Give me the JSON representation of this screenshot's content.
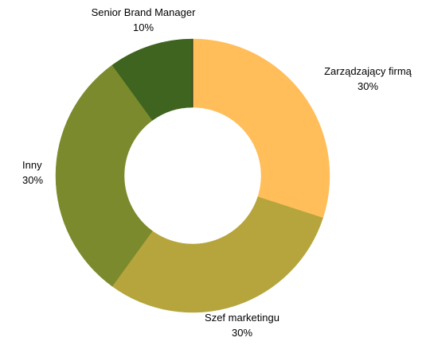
{
  "chart_data": {
    "type": "pie",
    "donut": true,
    "title": "",
    "legend": "none",
    "slices": [
      {
        "label": "Zarządzający firmą",
        "value": 30,
        "value_label": "30%",
        "color": "#ffbe5a"
      },
      {
        "label": "Szef marketingu",
        "value": 30,
        "value_label": "30%",
        "color": "#b6a53c"
      },
      {
        "label": "Inny",
        "value": 30,
        "value_label": "30%",
        "color": "#7b8a2c"
      },
      {
        "label": "Senior Brand Manager",
        "value": 10,
        "value_label": "10%",
        "color": "#3f6420"
      }
    ]
  }
}
